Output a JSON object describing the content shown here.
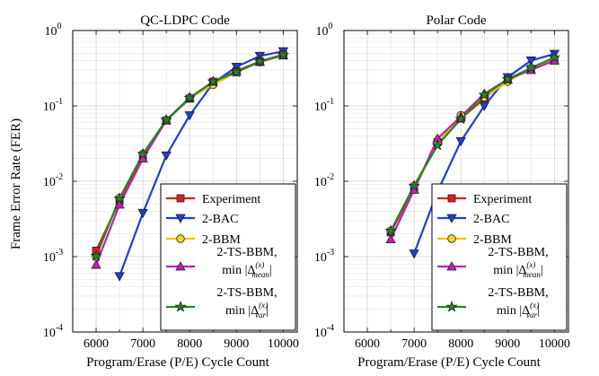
{
  "figure": {
    "ylabel": "Frame Error Rate (FER)",
    "xlabel": "Program/Erase (P/E) Cycle Count"
  },
  "chart_data": [
    {
      "type": "line",
      "title": "QC-LDPC Code",
      "xlabel": "Program/Erase (P/E) Cycle Count",
      "ylabel": "Frame Error Rate (FER)",
      "xlim": [
        5500,
        10300
      ],
      "ylim": [
        0.0001,
        1
      ],
      "yscale": "log",
      "xticks": [
        "6000",
        "7000",
        "8000",
        "9000",
        "10000"
      ],
      "grid": true,
      "series": [
        {
          "name": "Experiment",
          "x": [
            6000,
            6500,
            7000,
            7500,
            8000,
            8500,
            9000,
            9500,
            10000
          ],
          "y": [
            0.0012,
            0.0055,
            0.021,
            0.064,
            0.125,
            0.21,
            0.29,
            0.39,
            0.48
          ]
        },
        {
          "name": "2-BAC",
          "x": [
            6500,
            7000,
            7500,
            8000,
            8500,
            9000,
            9500,
            10000
          ],
          "y": [
            0.00055,
            0.0038,
            0.022,
            0.075,
            0.2,
            0.33,
            0.46,
            0.53
          ]
        },
        {
          "name": "2-BBM",
          "x": [
            6000,
            6500,
            7000,
            7500,
            8000,
            8500,
            9000,
            9500,
            10000
          ],
          "y": [
            0.001,
            0.006,
            0.023,
            0.065,
            0.128,
            0.19,
            0.28,
            0.38,
            0.47
          ]
        },
        {
          "name": "2-TS-BBM, min |Δmean(x)|",
          "x": [
            6000,
            6500,
            7000,
            7500,
            8000,
            8500,
            9000,
            9500,
            10000
          ],
          "y": [
            0.00078,
            0.0049,
            0.02,
            0.064,
            0.128,
            0.21,
            0.285,
            0.385,
            0.47
          ]
        },
        {
          "name": "2-TS-BBM, min |Δvar(x)|",
          "x": [
            6000,
            6500,
            7000,
            7500,
            8000,
            8500,
            9000,
            9500,
            10000
          ],
          "y": [
            0.00102,
            0.0059,
            0.023,
            0.065,
            0.128,
            0.21,
            0.28,
            0.39,
            0.47
          ]
        }
      ]
    },
    {
      "type": "line",
      "title": "Polar Code",
      "xlabel": "Program/Erase (P/E) Cycle Count",
      "ylabel": "Frame Error Rate (FER)",
      "xlim": [
        5500,
        10300
      ],
      "ylim": [
        0.0001,
        1
      ],
      "yscale": "log",
      "xticks": [
        "6000",
        "7000",
        "8000",
        "9000",
        "10000"
      ],
      "grid": true,
      "series": [
        {
          "name": "Experiment",
          "x": [
            6500,
            7000,
            7500,
            8000,
            8500,
            9000,
            9500,
            10000
          ],
          "y": [
            0.0021,
            0.008,
            0.033,
            0.068,
            0.125,
            0.23,
            0.31,
            0.4
          ]
        },
        {
          "name": "2-BAC",
          "x": [
            7000,
            7500,
            8000,
            8500,
            9000,
            9500,
            10000
          ],
          "y": [
            0.0011,
            0.0073,
            0.034,
            0.1,
            0.24,
            0.4,
            0.49
          ]
        },
        {
          "name": "2-BBM",
          "x": [
            6500,
            7000,
            7500,
            8000,
            8500,
            9000,
            9500,
            10000
          ],
          "y": [
            0.0022,
            0.0087,
            0.032,
            0.075,
            0.13,
            0.21,
            0.32,
            0.41
          ]
        },
        {
          "name": "2-TS-BBM, min |Δmean(x)|",
          "x": [
            6500,
            7000,
            7500,
            8000,
            8500,
            9000,
            9500,
            10000
          ],
          "y": [
            0.0017,
            0.0077,
            0.037,
            0.072,
            0.145,
            0.225,
            0.3,
            0.4
          ]
        },
        {
          "name": "2-TS-BBM, min |Δvar(x)|",
          "x": [
            6500,
            7000,
            7500,
            8000,
            8500,
            9000,
            9500,
            10000
          ],
          "y": [
            0.0022,
            0.0087,
            0.03,
            0.067,
            0.14,
            0.225,
            0.32,
            0.44
          ]
        }
      ]
    }
  ],
  "legend": {
    "placement": "lower-right",
    "items": [
      {
        "line1": "Experiment",
        "line2": "",
        "color": "#e41a1c",
        "marker": "square"
      },
      {
        "line1": "2-BAC",
        "line2": "",
        "color": "#1f3fd1",
        "marker": "triangle-down"
      },
      {
        "line1": "2-BBM",
        "line2": "",
        "color": "#f2c200",
        "marker": "circle"
      },
      {
        "line1": "2-TS-BBM,",
        "line2": "min |Δ(x)mean|",
        "color": "#c41fb5",
        "marker": "triangle-up"
      },
      {
        "line1": "2-TS-BBM,",
        "line2": "min |Δ(x)var|",
        "color": "#1d8a2b",
        "marker": "star"
      }
    ]
  },
  "ytick_labels": [
    {
      "base": "10",
      "exp": "0"
    },
    {
      "base": "10",
      "exp": "-1"
    },
    {
      "base": "10",
      "exp": "-2"
    },
    {
      "base": "10",
      "exp": "-3"
    },
    {
      "base": "10",
      "exp": "-4"
    }
  ],
  "colors": {
    "experiment": "#e41a1c",
    "bac": "#1f3fd1",
    "bbm": "#f2c200",
    "ts_mean": "#c41fb5",
    "ts_var": "#1d8a2b"
  }
}
